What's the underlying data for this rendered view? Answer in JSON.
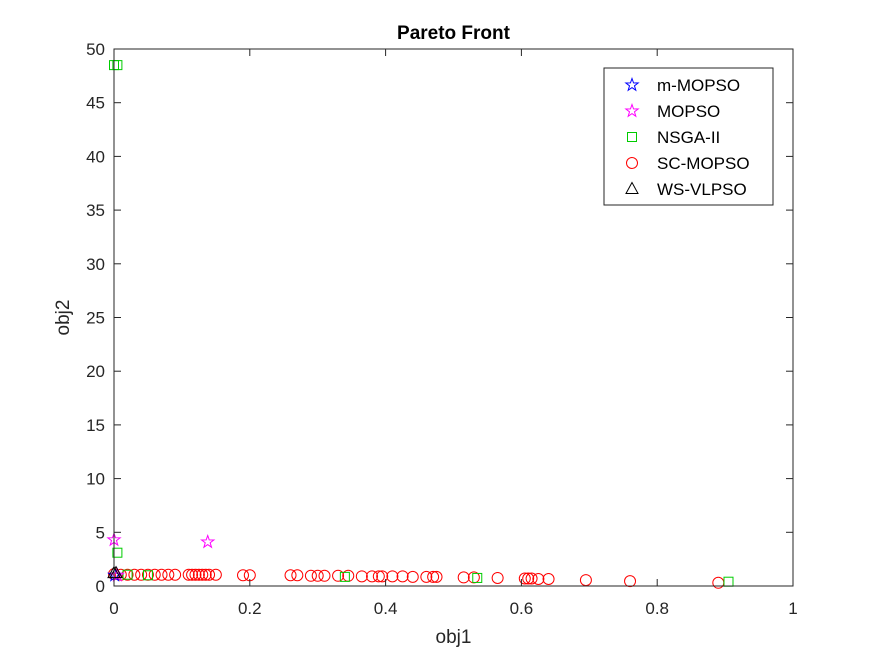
{
  "chart_data": {
    "type": "scatter",
    "title": "Pareto Front",
    "xlabel": "obj1",
    "ylabel": "obj2",
    "xlim": [
      0,
      1
    ],
    "ylim": [
      0,
      50
    ],
    "xticks": [
      0,
      0.2,
      0.4,
      0.6,
      0.8,
      1
    ],
    "xtick_labels": [
      "0",
      "0.2",
      "0.4",
      "0.6",
      "0.8",
      "1"
    ],
    "yticks": [
      0,
      5,
      10,
      15,
      20,
      25,
      30,
      35,
      40,
      45,
      50
    ],
    "ytick_labels": [
      "0",
      "5",
      "10",
      "15",
      "20",
      "25",
      "30",
      "35",
      "40",
      "45",
      "50"
    ],
    "grid": false,
    "legend_position": "top-right",
    "series": [
      {
        "name": "m-MOPSO",
        "marker": "star",
        "color": "#0000ff",
        "points": [
          [
            0.001,
            1.0
          ]
        ]
      },
      {
        "name": "MOPSO",
        "marker": "star",
        "color": "#ff00ff",
        "points": [
          [
            0.0,
            4.3
          ],
          [
            0.138,
            4.1
          ],
          [
            0.005,
            1.0
          ]
        ]
      },
      {
        "name": "NSGA-II",
        "marker": "square",
        "color": "#00cc00",
        "points": [
          [
            0.0,
            48.5
          ],
          [
            0.005,
            48.5
          ],
          [
            0.005,
            3.1
          ],
          [
            0.02,
            1.05
          ],
          [
            0.05,
            1.0
          ],
          [
            0.34,
            0.85
          ],
          [
            0.535,
            0.75
          ],
          [
            0.905,
            0.4
          ]
        ]
      },
      {
        "name": "SC-MOPSO",
        "marker": "circle",
        "color": "#ff0000",
        "points": [
          [
            0.0,
            1.1
          ],
          [
            0.01,
            1.05
          ],
          [
            0.02,
            1.05
          ],
          [
            0.03,
            1.05
          ],
          [
            0.04,
            1.05
          ],
          [
            0.05,
            1.05
          ],
          [
            0.06,
            1.05
          ],
          [
            0.07,
            1.05
          ],
          [
            0.08,
            1.05
          ],
          [
            0.09,
            1.05
          ],
          [
            0.11,
            1.05
          ],
          [
            0.115,
            1.05
          ],
          [
            0.12,
            1.05
          ],
          [
            0.125,
            1.05
          ],
          [
            0.13,
            1.05
          ],
          [
            0.135,
            1.05
          ],
          [
            0.14,
            1.05
          ],
          [
            0.15,
            1.05
          ],
          [
            0.19,
            1.0
          ],
          [
            0.2,
            1.0
          ],
          [
            0.26,
            1.0
          ],
          [
            0.27,
            1.0
          ],
          [
            0.29,
            0.95
          ],
          [
            0.3,
            0.95
          ],
          [
            0.31,
            0.95
          ],
          [
            0.33,
            0.95
          ],
          [
            0.345,
            0.95
          ],
          [
            0.365,
            0.9
          ],
          [
            0.38,
            0.9
          ],
          [
            0.39,
            0.9
          ],
          [
            0.395,
            0.9
          ],
          [
            0.41,
            0.9
          ],
          [
            0.425,
            0.9
          ],
          [
            0.44,
            0.85
          ],
          [
            0.46,
            0.85
          ],
          [
            0.47,
            0.85
          ],
          [
            0.475,
            0.85
          ],
          [
            0.515,
            0.8
          ],
          [
            0.53,
            0.8
          ],
          [
            0.565,
            0.75
          ],
          [
            0.605,
            0.7
          ],
          [
            0.61,
            0.7
          ],
          [
            0.615,
            0.7
          ],
          [
            0.625,
            0.65
          ],
          [
            0.64,
            0.65
          ],
          [
            0.695,
            0.55
          ],
          [
            0.76,
            0.45
          ],
          [
            0.89,
            0.3
          ]
        ]
      },
      {
        "name": "WS-VLPSO",
        "marker": "triangle",
        "color": "#000000",
        "points": [
          [
            0.0,
            1.2
          ],
          [
            0.003,
            1.2
          ]
        ]
      }
    ]
  }
}
